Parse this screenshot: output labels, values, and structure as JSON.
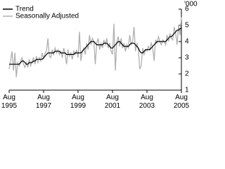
{
  "chart_data": {
    "type": "line",
    "y_unit": "'000",
    "categories": [
      "Aug 1995",
      null,
      null,
      null,
      null,
      null,
      null,
      null,
      null,
      null,
      null,
      null,
      null,
      null,
      null,
      null,
      null,
      null,
      null,
      null,
      null,
      null,
      null,
      null,
      "Aug 1997",
      null,
      null,
      null,
      null,
      null,
      null,
      null,
      null,
      null,
      null,
      null,
      null,
      null,
      null,
      null,
      null,
      null,
      null,
      null,
      null,
      null,
      null,
      null,
      "Aug 1999",
      null,
      null,
      null,
      null,
      null,
      null,
      null,
      null,
      null,
      null,
      null,
      null,
      null,
      null,
      null,
      null,
      null,
      null,
      null,
      null,
      null,
      null,
      null,
      "Aug 2001",
      null,
      null,
      null,
      null,
      null,
      null,
      null,
      null,
      null,
      null,
      null,
      null,
      null,
      null,
      null,
      null,
      null,
      null,
      null,
      null,
      null,
      null,
      null,
      "Aug 2003",
      null,
      null,
      null,
      null,
      null,
      null,
      null,
      null,
      null,
      null,
      null,
      null,
      null,
      null,
      null,
      null,
      null,
      null,
      null,
      null,
      null,
      null,
      null,
      "Aug 2005"
    ],
    "series": [
      {
        "name": "Trend",
        "color": "#000000",
        "values": [
          2.6,
          2.6,
          2.6,
          2.6,
          2.6,
          2.6,
          2.6,
          2.6,
          2.7,
          2.8,
          2.8,
          2.7,
          2.6,
          2.6,
          2.7,
          2.7,
          2.7,
          2.8,
          2.8,
          2.9,
          2.9,
          2.9,
          2.9,
          2.9,
          3.0,
          3.1,
          3.2,
          3.3,
          3.3,
          3.3,
          3.3,
          3.3,
          3.4,
          3.4,
          3.4,
          3.4,
          3.3,
          3.3,
          3.3,
          3.3,
          3.2,
          3.2,
          3.2,
          3.2,
          3.2,
          3.2,
          3.3,
          3.3,
          3.3,
          3.3,
          3.3,
          3.4,
          3.5,
          3.6,
          3.7,
          3.8,
          3.9,
          4.0,
          4.0,
          4.0,
          3.9,
          3.8,
          3.8,
          3.8,
          3.8,
          3.8,
          3.9,
          3.9,
          3.9,
          3.8,
          3.7,
          3.6,
          3.6,
          3.7,
          3.8,
          3.9,
          4.0,
          4.0,
          3.9,
          3.8,
          3.7,
          3.7,
          3.7,
          3.7,
          3.8,
          3.9,
          3.9,
          3.9,
          3.8,
          3.7,
          3.6,
          3.4,
          3.3,
          3.3,
          3.4,
          3.5,
          3.5,
          3.5,
          3.5,
          3.6,
          3.7,
          3.8,
          3.9,
          4.0,
          4.0,
          4.0,
          4.0,
          4.0,
          4.0,
          4.0,
          4.1,
          4.2,
          4.3,
          4.3,
          4.4,
          4.5,
          4.6,
          4.7,
          4.7,
          4.8,
          4.8
        ]
      },
      {
        "name": "Seasonally Adjusted",
        "color": "#b0b0b0",
        "values": [
          2.3,
          2.8,
          3.4,
          2.2,
          3.3,
          1.8,
          2.7,
          2.5,
          2.8,
          3.0,
          2.6,
          2.4,
          2.7,
          2.4,
          2.9,
          2.5,
          2.8,
          3.0,
          2.6,
          3.1,
          2.7,
          3.0,
          2.8,
          3.3,
          2.9,
          3.3,
          3.4,
          4.2,
          3.1,
          3.0,
          3.5,
          3.2,
          3.6,
          3.3,
          3.5,
          3.2,
          3.4,
          3.0,
          3.6,
          3.2,
          2.6,
          3.5,
          3.1,
          3.3,
          2.9,
          3.4,
          3.2,
          3.5,
          3.0,
          4.6,
          2.8,
          3.4,
          3.6,
          3.2,
          3.9,
          3.5,
          4.4,
          3.8,
          4.2,
          4.0,
          2.6,
          3.9,
          4.2,
          3.5,
          3.9,
          3.6,
          4.1,
          3.8,
          4.2,
          3.6,
          3.9,
          3.4,
          3.2,
          5.1,
          2.2,
          4.0,
          4.3,
          3.7,
          4.2,
          3.6,
          3.9,
          3.4,
          3.8,
          3.6,
          4.4,
          3.8,
          4.0,
          4.9,
          3.4,
          3.9,
          3.5,
          2.3,
          2.5,
          3.6,
          3.2,
          3.5,
          3.4,
          3.7,
          3.5,
          3.9,
          3.6,
          2.8,
          4.1,
          3.9,
          4.3,
          4.0,
          3.8,
          4.1,
          4.0,
          3.8,
          4.4,
          4.0,
          4.5,
          4.2,
          4.1,
          4.9,
          4.5,
          3.8,
          5.0,
          4.4,
          5.5
        ]
      }
    ],
    "ylim": [
      1,
      6
    ],
    "yticks": [
      1,
      2,
      3,
      4,
      5,
      6
    ],
    "legend": "top-left"
  }
}
